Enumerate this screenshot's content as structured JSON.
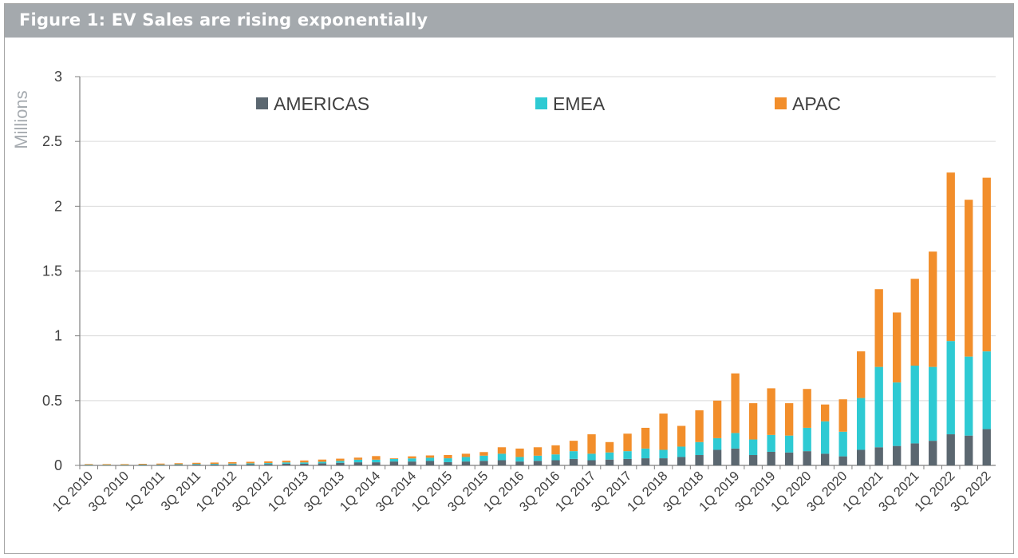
{
  "header": {
    "title": "Figure 1: EV Sales are rising exponentially"
  },
  "chart_data": {
    "type": "bar",
    "stacked": true,
    "title": "Figure 1: EV Sales are rising exponentially",
    "xlabel": "",
    "ylabel": "Millions",
    "ylim": [
      0,
      3
    ],
    "yticks": [
      "0",
      "0.5",
      "1",
      "1.5",
      "2",
      "2.5",
      "3"
    ],
    "ytick_values": [
      0,
      0.5,
      1,
      1.5,
      2,
      2.5,
      3
    ],
    "grid": true,
    "legend_position": "top",
    "categories": [
      "1Q 2010",
      "2Q 2010",
      "3Q 2010",
      "4Q 2010",
      "1Q 2011",
      "2Q 2011",
      "3Q 2011",
      "4Q 2011",
      "1Q 2012",
      "2Q 2012",
      "3Q 2012",
      "4Q 2012",
      "1Q 2013",
      "2Q 2013",
      "3Q 2013",
      "4Q 2013",
      "1Q 2014",
      "2Q 2014",
      "3Q 2014",
      "4Q 2014",
      "1Q 2015",
      "2Q 2015",
      "3Q 2015",
      "4Q 2015",
      "1Q 2016",
      "2Q 2016",
      "3Q 2016",
      "4Q 2016",
      "1Q 2017",
      "2Q 2017",
      "3Q 2017",
      "4Q 2017",
      "1Q 2018",
      "2Q 2018",
      "3Q 2018",
      "4Q 2018",
      "1Q 2019",
      "2Q 2019",
      "3Q 2019",
      "4Q 2019",
      "1Q 2020",
      "2Q 2020",
      "3Q 2020",
      "4Q 2020",
      "1Q 2021",
      "2Q 2021",
      "3Q 2021",
      "4Q 2021",
      "1Q 2022",
      "2Q 2022",
      "3Q 2022"
    ],
    "shown_x_labels": [
      "1Q 2010",
      "3Q 2010",
      "1Q 2011",
      "3Q 2011",
      "1Q 2012",
      "3Q 2012",
      "1Q 2013",
      "3Q 2013",
      "1Q 2014",
      "3Q 2014",
      "1Q 2015",
      "3Q 2015",
      "1Q 2016",
      "3Q 2016",
      "1Q 2017",
      "3Q 2017",
      "1Q 2018",
      "3Q 2018",
      "1Q 2019",
      "3Q 2019",
      "1Q 2020",
      "3Q 2020",
      "1Q 2021",
      "3Q 2021",
      "1Q 2022",
      "3Q 2022"
    ],
    "series": [
      {
        "name": "AMERICAS",
        "color": "#5b6770",
        "values": [
          0.003,
          0.002,
          0.002,
          0.003,
          0.004,
          0.005,
          0.006,
          0.007,
          0.008,
          0.009,
          0.01,
          0.013,
          0.013,
          0.016,
          0.02,
          0.024,
          0.024,
          0.03,
          0.03,
          0.034,
          0.025,
          0.03,
          0.035,
          0.04,
          0.03,
          0.035,
          0.04,
          0.05,
          0.04,
          0.045,
          0.05,
          0.055,
          0.055,
          0.065,
          0.08,
          0.12,
          0.13,
          0.08,
          0.105,
          0.1,
          0.11,
          0.09,
          0.07,
          0.12,
          0.14,
          0.15,
          0.17,
          0.19,
          0.24,
          0.23,
          0.28
        ]
      },
      {
        "name": "EMEA",
        "color": "#2ecad3",
        "values": [
          0.002,
          0.002,
          0.002,
          0.003,
          0.003,
          0.004,
          0.005,
          0.005,
          0.006,
          0.007,
          0.008,
          0.01,
          0.01,
          0.012,
          0.015,
          0.02,
          0.02,
          0.02,
          0.024,
          0.025,
          0.03,
          0.035,
          0.04,
          0.05,
          0.035,
          0.04,
          0.045,
          0.06,
          0.05,
          0.055,
          0.06,
          0.075,
          0.065,
          0.08,
          0.1,
          0.09,
          0.12,
          0.12,
          0.13,
          0.13,
          0.18,
          0.25,
          0.19,
          0.4,
          0.62,
          0.49,
          0.6,
          0.57,
          0.72,
          0.61,
          0.6
        ]
      },
      {
        "name": "APAC",
        "color": "#f28e2b",
        "values": [
          0.005,
          0.006,
          0.006,
          0.006,
          0.007,
          0.008,
          0.009,
          0.01,
          0.011,
          0.012,
          0.013,
          0.013,
          0.015,
          0.017,
          0.017,
          0.016,
          0.028,
          0.005,
          0.016,
          0.018,
          0.025,
          0.025,
          0.028,
          0.05,
          0.065,
          0.065,
          0.07,
          0.08,
          0.15,
          0.08,
          0.135,
          0.16,
          0.28,
          0.16,
          0.245,
          0.29,
          0.46,
          0.28,
          0.36,
          0.25,
          0.3,
          0.13,
          0.25,
          0.36,
          0.6,
          0.54,
          0.67,
          0.89,
          1.3,
          1.21,
          1.34
        ]
      }
    ]
  }
}
